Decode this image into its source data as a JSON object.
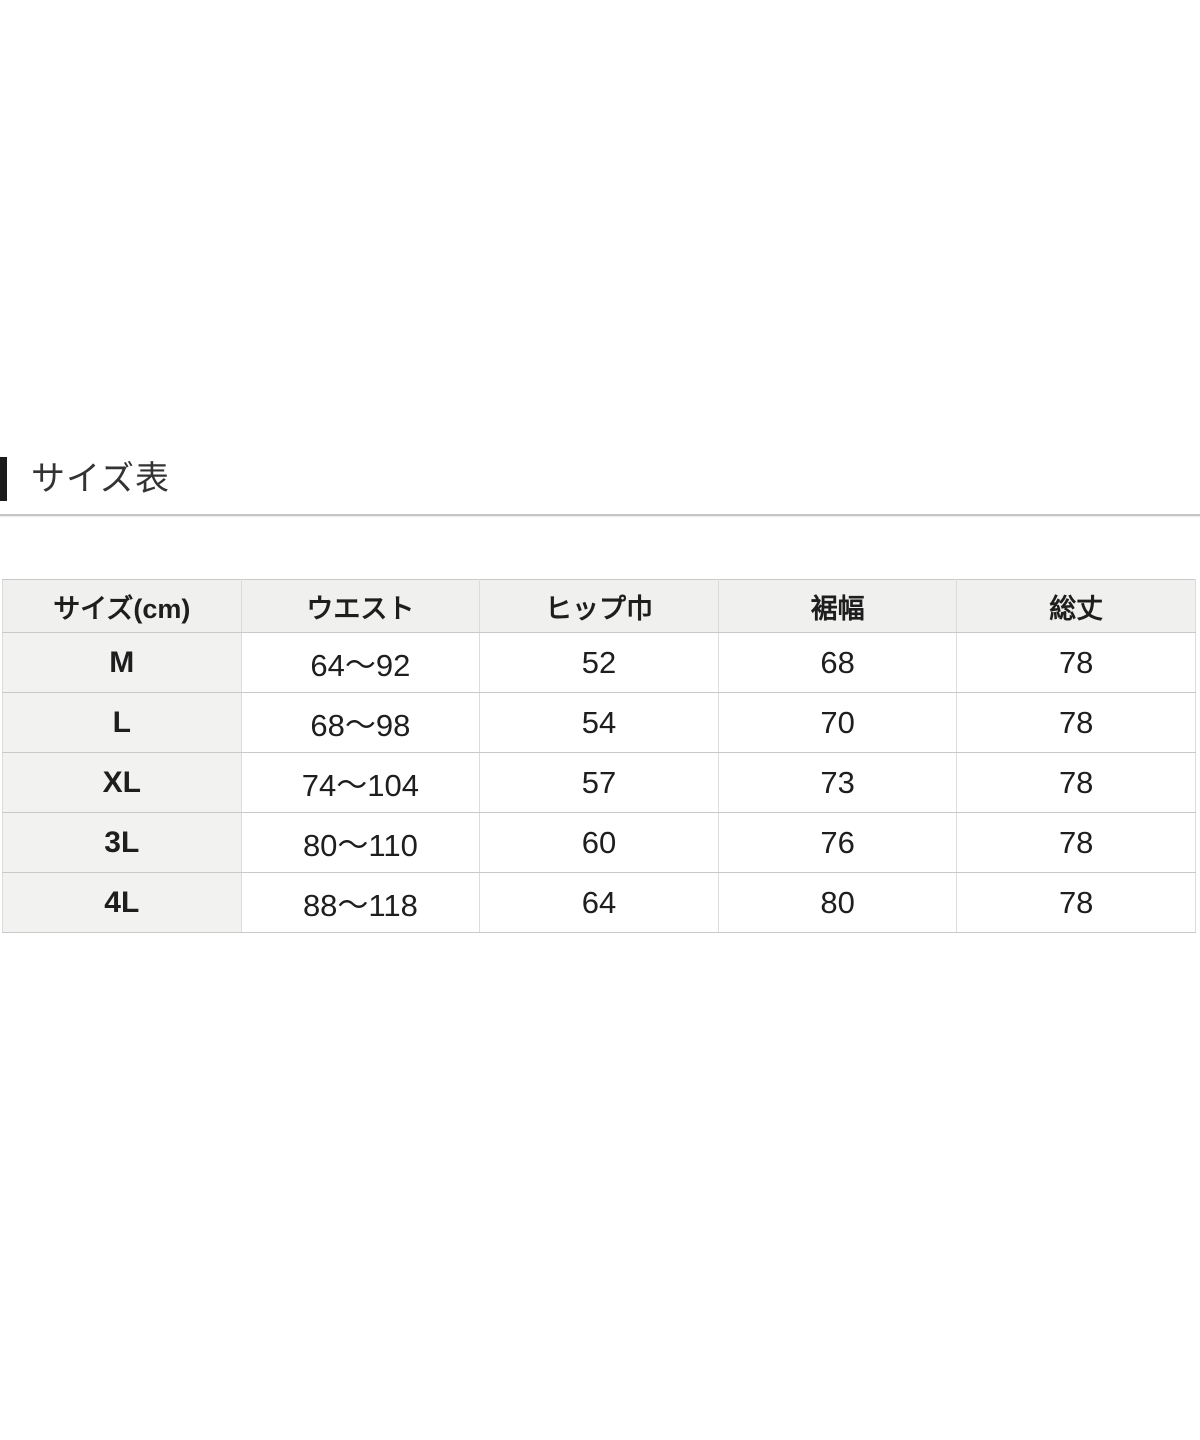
{
  "section": {
    "title": "サイズ表"
  },
  "size_table": {
    "headers": [
      "サイズ(cm)",
      "ウエスト",
      "ヒップ巾",
      "裾幅",
      "総丈"
    ],
    "rows": [
      {
        "size": "M",
        "values": [
          "64〜92",
          "52",
          "68",
          "78"
        ]
      },
      {
        "size": "L",
        "values": [
          "68〜98",
          "54",
          "70",
          "78"
        ]
      },
      {
        "size": "XL",
        "values": [
          "74〜104",
          "57",
          "73",
          "78"
        ]
      },
      {
        "size": "3L",
        "values": [
          "80〜110",
          "60",
          "76",
          "78"
        ]
      },
      {
        "size": "4L",
        "values": [
          "88〜118",
          "64",
          "80",
          "78"
        ]
      }
    ]
  }
}
